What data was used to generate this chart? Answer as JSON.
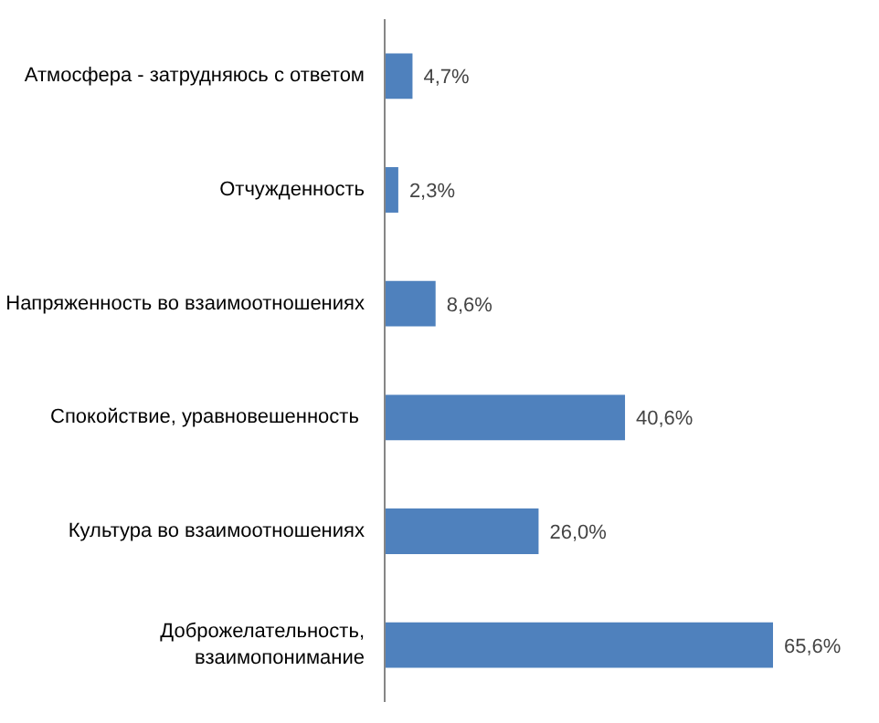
{
  "chart_data": {
    "type": "bar",
    "orientation": "horizontal",
    "categories": [
      "Атмосфера - затрудняюсь с ответом",
      "Отчужденность",
      "Напряженность во взаимоотношениях",
      "Спокойствие,  уравновешенность",
      "Культура во взаимоотношениях",
      "Доброжелательность, взаимопонимание"
    ],
    "values": [
      4.7,
      2.3,
      8.6,
      40.6,
      26.0,
      65.6
    ],
    "value_labels": [
      "4,7%",
      "2,3%",
      "8,6%",
      "40,6%",
      "26,0%",
      "65,6%"
    ],
    "color": "#4f81bd",
    "grid": false
  }
}
